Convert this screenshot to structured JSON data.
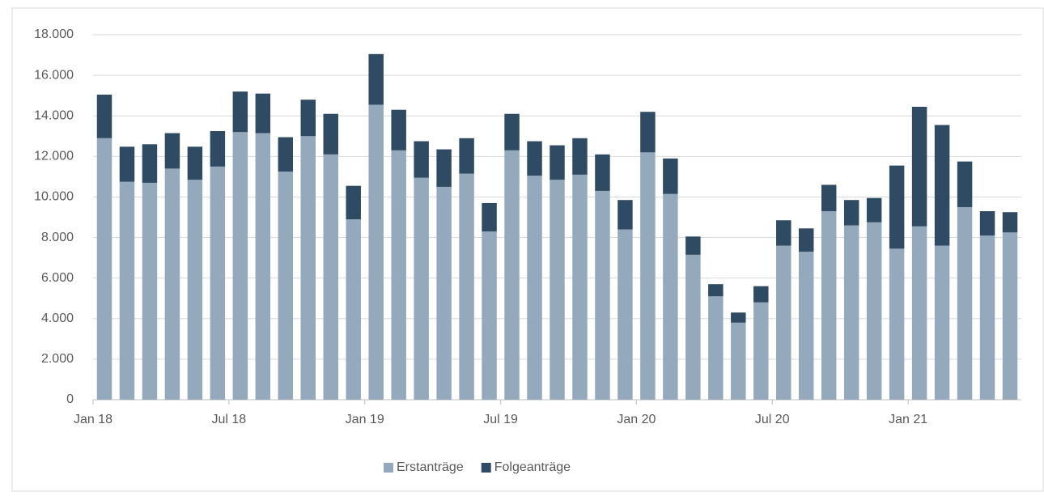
{
  "chart_data": {
    "type": "bar",
    "stacked": true,
    "categories": [
      "Jan 18",
      null,
      null,
      null,
      null,
      null,
      "Jul 18",
      null,
      null,
      null,
      null,
      null,
      "Jan 19",
      null,
      null,
      null,
      null,
      null,
      "Jul 19",
      null,
      null,
      null,
      null,
      null,
      "Jan 20",
      null,
      null,
      null,
      null,
      null,
      "Jul 20",
      null,
      null,
      null,
      null,
      null,
      "Jan 21",
      null,
      null,
      null,
      null
    ],
    "series": [
      {
        "name": "Erstanträge",
        "color": "#94a9bc",
        "values": [
          12900,
          10750,
          10700,
          11400,
          10850,
          11500,
          13200,
          13150,
          11250,
          13000,
          12100,
          8900,
          14550,
          12300,
          10950,
          10500,
          11150,
          8300,
          12300,
          11050,
          10850,
          11100,
          10300,
          8400,
          12200,
          10150,
          7150,
          5100,
          3800,
          4800,
          7600,
          7300,
          9300,
          8600,
          8750,
          7450,
          8550,
          7600,
          9500,
          8100,
          8250
        ]
      },
      {
        "name": "Folgeanträge",
        "color": "#2f4a63",
        "values": [
          2150,
          1730,
          1900,
          1750,
          1630,
          1750,
          2000,
          1950,
          1700,
          1800,
          2000,
          1650,
          2500,
          2000,
          1800,
          1850,
          1750,
          1400,
          1800,
          1700,
          1700,
          1800,
          1800,
          1450,
          2000,
          1750,
          900,
          600,
          500,
          800,
          1250,
          1150,
          1300,
          1250,
          1200,
          4100,
          5900,
          5950,
          2250,
          1200,
          1000
        ]
      }
    ],
    "ylim": [
      0,
      18000
    ],
    "yticks": [
      0,
      {
        "value": 2000,
        "label": "2.000"
      },
      {
        "value": 4000,
        "label": "4.000"
      },
      {
        "value": 6000,
        "label": "6.000"
      },
      {
        "value": 8000,
        "label": "8.000"
      },
      {
        "value": 10000,
        "label": "10.000"
      },
      {
        "value": 12000,
        "label": "12.000"
      },
      {
        "value": 14000,
        "label": "14.000"
      },
      {
        "value": 16000,
        "label": "16.000"
      },
      {
        "value": 18000,
        "label": "18.000"
      }
    ],
    "grid": true,
    "legend": "bottom"
  }
}
